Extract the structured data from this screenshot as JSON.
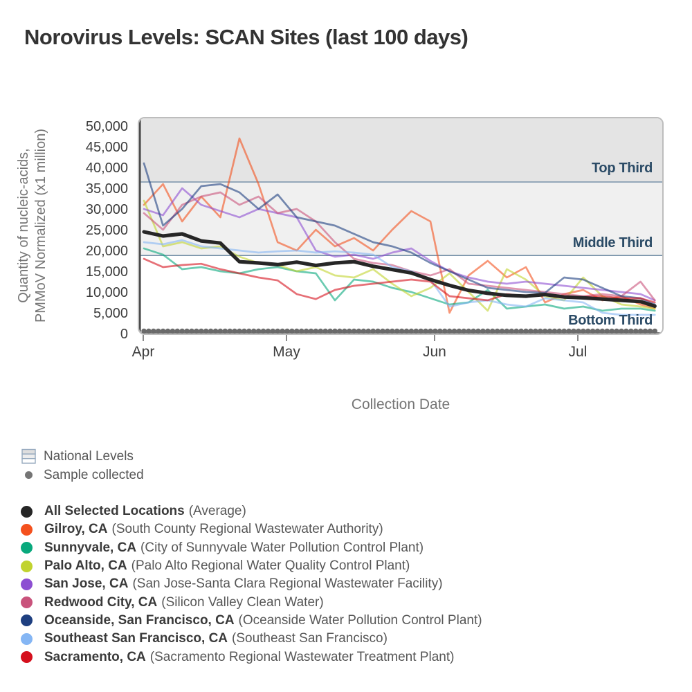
{
  "title": "Norovirus Levels: SCAN Sites (last 100 days)",
  "axes": {
    "x_label": "Collection Date",
    "y_label_line1": "Quantity of nucleic-acids,",
    "y_label_line2": "PMMoV Normalized (x1 million)"
  },
  "national_legend": {
    "national_levels_label": "National Levels",
    "sample_collected_label": "Sample collected"
  },
  "chart_data": {
    "type": "line",
    "title": "Norovirus Levels: SCAN Sites (last 100 days)",
    "xlabel": "Collection Date",
    "ylabel": "Quantity of nucleic-acids, PMMoV Normalized (x1 million)",
    "x_unit": "days since Apr 1",
    "x_range_note": "Apr 1 through ~Jul 17 (last 100 days)",
    "ylim": [
      0,
      52000
    ],
    "grid": false,
    "y_ticks": [
      {
        "value": 0,
        "label": "0"
      },
      {
        "value": 5000,
        "label": "5,000"
      },
      {
        "value": 10000,
        "label": "10,000"
      },
      {
        "value": 15000,
        "label": "15,000"
      },
      {
        "value": 20000,
        "label": "20,000"
      },
      {
        "value": 25000,
        "label": "25,000"
      },
      {
        "value": 30000,
        "label": "30,000"
      },
      {
        "value": 35000,
        "label": "35,000"
      },
      {
        "value": 40000,
        "label": "40,000"
      },
      {
        "value": 45000,
        "label": "45,000"
      },
      {
        "value": 50000,
        "label": "50,000"
      }
    ],
    "x_ticks": [
      {
        "label": "Apr",
        "day": 0
      },
      {
        "label": "May",
        "day": 30
      },
      {
        "label": "Jun",
        "day": 61
      },
      {
        "label": "Jul",
        "day": 91
      }
    ],
    "bands": {
      "top_third": {
        "label": "Top Third",
        "min": 36500,
        "max": 52000,
        "fill": "#e4e4e4",
        "label_value": 40000
      },
      "middle_third": {
        "label": "Middle Third",
        "min": 18800,
        "max": 36500,
        "fill": "#f0f0f0",
        "label_value": 22000
      },
      "bottom_third": {
        "label": "Bottom Third",
        "min": 0,
        "max": 18800,
        "fill": "#ffffff",
        "label_value": 3300
      },
      "boundary_line_color": "#60819c",
      "label_color": "#2b4b66"
    },
    "sample_collected": {
      "start_day": 0,
      "end_day": 107,
      "interval_days": 1,
      "value": 400,
      "color": "#6a6a6a"
    },
    "days": [
      0,
      4,
      8,
      12,
      16,
      20,
      24,
      28,
      32,
      36,
      40,
      44,
      48,
      52,
      56,
      60,
      64,
      68,
      72,
      76,
      80,
      84,
      88,
      92,
      96,
      100,
      104,
      107
    ],
    "series": [
      {
        "name": "All Selected Locations",
        "desc": "(Average)",
        "color": "#262626",
        "emphasis": true,
        "values": [
          24500,
          23500,
          24000,
          22300,
          21800,
          17300,
          17000,
          16600,
          17200,
          16400,
          17000,
          17300,
          16200,
          15400,
          14600,
          13000,
          11600,
          10400,
          9700,
          9200,
          9000,
          9400,
          8800,
          8600,
          8300,
          8000,
          7700,
          6600
        ]
      },
      {
        "name": "Gilroy, CA",
        "desc": "(South County Regional Wastewater Authority)",
        "color": "#f4511e",
        "emphasis": false,
        "values": [
          31000,
          36000,
          27000,
          33000,
          28000,
          47000,
          36000,
          22000,
          20000,
          25000,
          21000,
          23000,
          20000,
          25000,
          29500,
          27000,
          5000,
          14000,
          17500,
          13500,
          16000,
          7500,
          9500,
          10500,
          8000,
          9000,
          7000,
          6000
        ]
      },
      {
        "name": "Sunnyvale, CA",
        "desc": "(City of Sunnyvale Water Pollution Control Plant)",
        "color": "#09a97d",
        "emphasis": false,
        "values": [
          20500,
          19000,
          15500,
          16000,
          15000,
          14500,
          15500,
          16000,
          15000,
          14500,
          8000,
          13000,
          12500,
          11000,
          10000,
          8500,
          7000,
          7500,
          10500,
          6000,
          6500,
          7000,
          6000,
          6500,
          5500,
          6000,
          6000,
          5500
        ]
      },
      {
        "name": "Palo Alto, CA",
        "desc": "(Palo Alto Regional Water Quality Control Plant)",
        "color": "#c1d32f",
        "emphasis": false,
        "values": [
          32000,
          21000,
          22000,
          20500,
          21000,
          18500,
          17000,
          16500,
          15000,
          16000,
          14000,
          13500,
          15500,
          12000,
          9000,
          11000,
          14500,
          10000,
          5500,
          15500,
          13000,
          9000,
          8000,
          13500,
          9000,
          7000,
          6500,
          6000
        ]
      },
      {
        "name": "San Jose, CA",
        "desc": "(San Jose-Santa Clara Regional Wastewater Facility)",
        "color": "#8d4fd2",
        "emphasis": false,
        "values": [
          30000,
          28500,
          35000,
          31000,
          29500,
          28000,
          30000,
          29000,
          28000,
          20000,
          18500,
          19000,
          18000,
          19500,
          20500,
          17500,
          15000,
          13500,
          12500,
          12000,
          12500,
          12000,
          11500,
          11000,
          10500,
          10000,
          9500,
          8000
        ]
      },
      {
        "name": "Redwood City, CA",
        "desc": "(Silicon Valley Clean Water)",
        "color": "#c9537c",
        "emphasis": false,
        "values": [
          29000,
          25000,
          31000,
          33000,
          34000,
          31000,
          33000,
          29000,
          30000,
          27000,
          22000,
          18000,
          17000,
          16500,
          15000,
          14000,
          15500,
          12000,
          11500,
          11000,
          10500,
          10000,
          9500,
          9000,
          9500,
          9000,
          12500,
          8000
        ]
      },
      {
        "name": "Oceanside, San Francisco, CA",
        "desc": "(Oceanside Water Pollution Control Plant)",
        "color": "#1e3f80",
        "emphasis": false,
        "values": [
          41000,
          26000,
          30000,
          35500,
          36000,
          34000,
          30000,
          33500,
          28000,
          27000,
          26000,
          24000,
          22000,
          21000,
          19500,
          17000,
          15000,
          13000,
          11000,
          10500,
          10000,
          9800,
          13500,
          13000,
          11000,
          9000,
          8500,
          7000
        ]
      },
      {
        "name": "Southeast San Francisco, CA",
        "desc": "(Southeast San Francisco)",
        "color": "#85b6f4",
        "emphasis": false,
        "values": [
          22000,
          21500,
          22500,
          21000,
          20500,
          20000,
          19500,
          19800,
          20000,
          19500,
          19800,
          19500,
          19000,
          16000,
          15000,
          13000,
          6500,
          7500,
          8000,
          7000,
          6500,
          8500,
          8000,
          7500,
          5000,
          4500,
          4500,
          4500
        ]
      },
      {
        "name": "Sacramento, CA",
        "desc": "(Sacramento Regional Wastewater Treatment Plant)",
        "color": "#d5101d",
        "emphasis": false,
        "values": [
          18000,
          16000,
          16500,
          16800,
          15500,
          14500,
          13500,
          12800,
          9500,
          8300,
          10500,
          11500,
          12000,
          12500,
          13000,
          12500,
          9000,
          8500,
          8000,
          9500,
          9000,
          9500,
          9000,
          8800,
          9000,
          8500,
          8500,
          7500
        ]
      }
    ]
  }
}
